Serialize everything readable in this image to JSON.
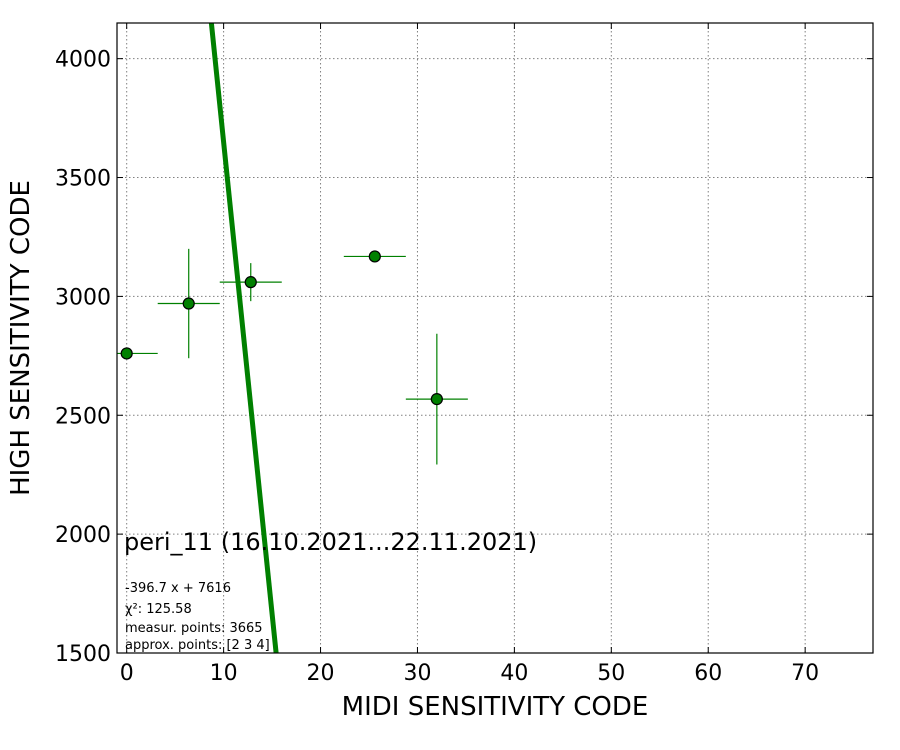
{
  "chart_data": {
    "type": "scatter",
    "xlabel": "MIDI SENSITIVITY CODE",
    "ylabel": "HIGH SENSITIVITY CODE",
    "xlim": [
      -1,
      77
    ],
    "ylim": [
      1500,
      4150
    ],
    "xticks": [
      "0",
      "10",
      "20",
      "30",
      "40",
      "50",
      "60",
      "70"
    ],
    "xtick_values": [
      0,
      10,
      20,
      30,
      40,
      50,
      60,
      70
    ],
    "yticks": [
      "1500",
      "2000",
      "2500",
      "3000",
      "3500",
      "4000"
    ],
    "ytick_values": [
      1500,
      2000,
      2500,
      3000,
      3500,
      4000
    ],
    "grid": true,
    "points": [
      {
        "x": 0,
        "y": 2760,
        "xerr": 3.2,
        "yerr": 0
      },
      {
        "x": 6.4,
        "y": 2970,
        "xerr": 3.2,
        "yerr": 230
      },
      {
        "x": 12.8,
        "y": 3060,
        "xerr": 3.2,
        "yerr": 80
      },
      {
        "x": 25.6,
        "y": 3168,
        "xerr": 3.2,
        "yerr": 0
      },
      {
        "x": 32,
        "y": 2568,
        "xerr": 3.2,
        "yerr": 275
      }
    ],
    "fit_line": {
      "slope": -396.7,
      "intercept": 7616
    },
    "colors": {
      "point_fill": "#008000",
      "point_edge": "#000000",
      "errorbar": "#008000",
      "fit_line": "#008000"
    },
    "annotations": {
      "title": "peri_11 (16.10.2021...22.11.2021)",
      "equation": "-396.7 x + 7616",
      "chi2_label": "χ²: 125.58",
      "measur": "measur. points: 3665",
      "approx": "approx. points: [2 3 4]"
    }
  }
}
